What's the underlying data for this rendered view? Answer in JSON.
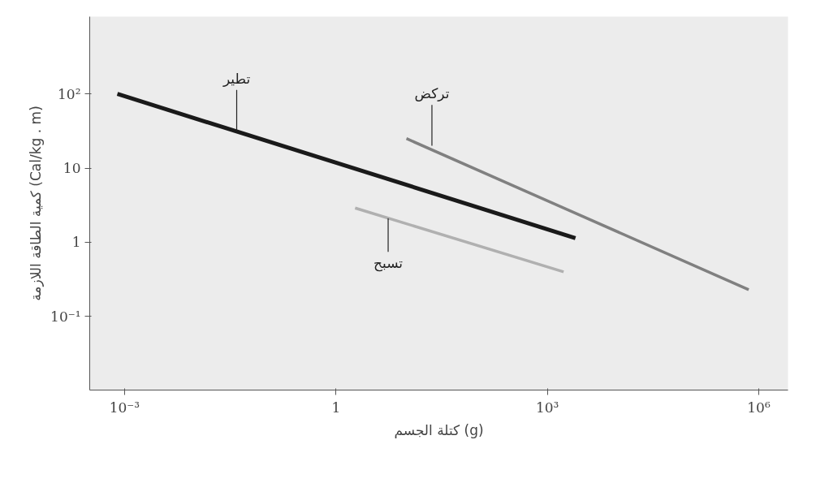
{
  "chart_data": {
    "type": "line",
    "xlabel": "كتلة الجسم (g)",
    "ylabel": "كمية الطاقة اللازمة (Cal/kg . m)",
    "log": "xy",
    "xlim": [
      0.00032,
      2600000
    ],
    "ylim": [
      0.0102,
      1100
    ],
    "xticks": [
      {
        "value": 0.001,
        "label": "10⁻³"
      },
      1,
      {
        "value": 1000,
        "label": "10³"
      },
      {
        "value": 1000000,
        "label": "10⁶"
      }
    ],
    "yticks": [
      {
        "value": 0.1,
        "label": "10⁻¹"
      },
      1,
      10,
      {
        "value": 100,
        "label": "10²"
      }
    ],
    "grid": false,
    "line_style": "solid",
    "marker": "none",
    "series": [
      {
        "color": "#1a1a1a",
        "x": [
          0.00079,
          2500
        ],
        "values": [
          100,
          1.14
        ]
      },
      {
        "color": "#808080",
        "x": [
          10,
          720000
        ],
        "values": [
          25,
          0.23
        ]
      },
      {
        "color": "#b0b0b0",
        "x": [
          1.87,
          1700
        ],
        "values": [
          2.9,
          0.4
        ]
      }
    ],
    "annotations": [
      {
        "text": "تطير",
        "x": 0.039,
        "y": 32
      },
      {
        "text": "تركض",
        "x": 23,
        "y": 20
      },
      {
        "text": "تسبح",
        "x": 5.5,
        "y": 2.1
      }
    ]
  }
}
